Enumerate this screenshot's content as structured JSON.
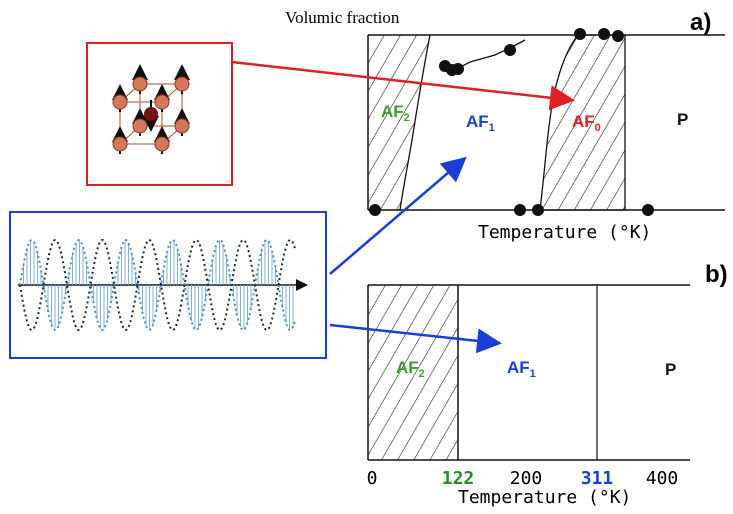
{
  "panel_a": {
    "label": "a)",
    "y_axis_title": "Volumic fraction",
    "x_axis_title": "Temperature (°K)",
    "phases": [
      {
        "name": "AF",
        "sub": "2"
      },
      {
        "name": "AF",
        "sub": "1"
      },
      {
        "name": "AF",
        "sub": "0"
      },
      {
        "name": "P"
      }
    ]
  },
  "panel_b": {
    "label": "b)",
    "x_axis_title": "Temperature (°K)",
    "ticks": [
      0,
      122,
      200,
      311,
      400
    ],
    "phases": [
      {
        "name": "AF",
        "sub": "2"
      },
      {
        "name": "AF",
        "sub": "1"
      },
      {
        "name": "P"
      }
    ]
  }
}
